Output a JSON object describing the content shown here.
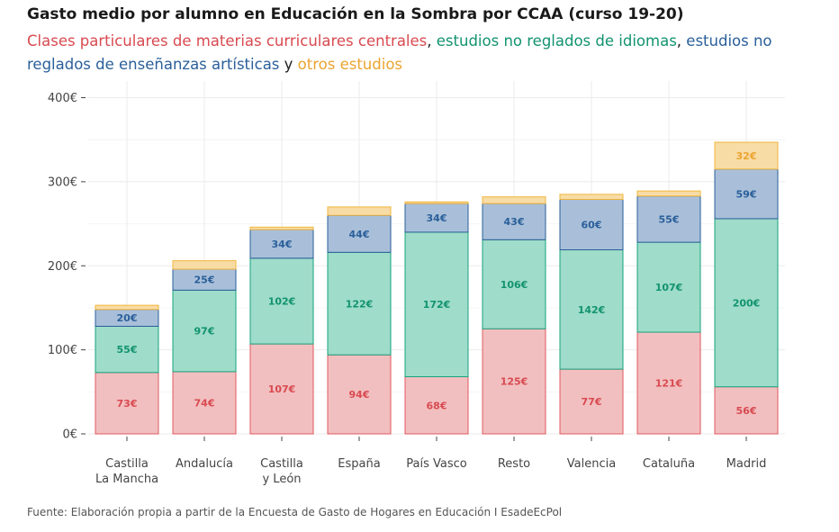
{
  "chart_data": {
    "type": "bar",
    "stacked": true,
    "title": "Gasto medio por alumno en Educación en la Sombra por CCAA (curso 19-20)",
    "subtitle_parts": [
      {
        "text": "Clases particulares de materias curriculares centrales",
        "series": 0
      },
      {
        "text": ", ",
        "series": null
      },
      {
        "text": "estudios no reglados de idiomas",
        "series": 1
      },
      {
        "text": ", ",
        "series": null
      },
      {
        "text": "estudios no reglados de enseñanzas artísticas",
        "series": 2
      },
      {
        "text": " y ",
        "series": null
      },
      {
        "text": "otros estudios",
        "series": 3
      }
    ],
    "caption": "Fuente: Elaboración propia a partir de la Encuesta de Gasto de Hogares en Educación I EsadeEcPol",
    "categories": [
      [
        "Castilla",
        "La Mancha"
      ],
      [
        "Andalucía"
      ],
      [
        "Castilla",
        "y León"
      ],
      [
        "España"
      ],
      [
        "País Vasco"
      ],
      [
        "Resto"
      ],
      [
        "Valencia"
      ],
      [
        "Cataluña"
      ],
      [
        "Madrid"
      ]
    ],
    "series": [
      {
        "name": "Clases particulares de materias curriculares centrales",
        "values": [
          73,
          74,
          107,
          94,
          68,
          125,
          77,
          121,
          56
        ],
        "labels": [
          "73€",
          "74€",
          "107€",
          "94€",
          "68€",
          "125€",
          "77€",
          "121€",
          "56€"
        ],
        "color": "#e05a5f",
        "fill": "#f2bfc0",
        "text_color": "#d84a50"
      },
      {
        "name": "estudios no reglados de idiomas",
        "values": [
          55,
          97,
          102,
          122,
          172,
          106,
          142,
          107,
          200
        ],
        "labels": [
          "55€",
          "97€",
          "102€",
          "122€",
          "172€",
          "106€",
          "142€",
          "107€",
          "200€"
        ],
        "color": "#17a37e",
        "fill": "#9fdcc9",
        "text_color": "#12936f"
      },
      {
        "name": "estudios no reglados de enseñanzas artísticas",
        "values": [
          20,
          25,
          34,
          44,
          34,
          43,
          60,
          55,
          59
        ],
        "labels": [
          "20€",
          "25€",
          "34€",
          "44€",
          "34€",
          "43€",
          "60€",
          "55€",
          "59€"
        ],
        "color": "#2a5f9a",
        "fill": "#a9bfd9",
        "text_color": "#2a5f9a"
      },
      {
        "name": "otros estudios",
        "values": [
          5,
          10,
          3,
          10,
          2,
          8,
          6,
          6,
          32
        ],
        "labels": [
          "",
          "",
          "",
          "",
          "",
          "",
          "",
          "",
          "32€"
        ],
        "color": "#f0b63c",
        "fill": "#f8dca6",
        "text_color": "#eba430"
      }
    ],
    "ylim": [
      0,
      420
    ],
    "yticks": [
      0,
      100,
      200,
      300,
      400
    ],
    "ytick_labels": [
      "0€",
      "100€",
      "200€",
      "300€",
      "400€"
    ],
    "xlabel": "",
    "ylabel": ""
  }
}
